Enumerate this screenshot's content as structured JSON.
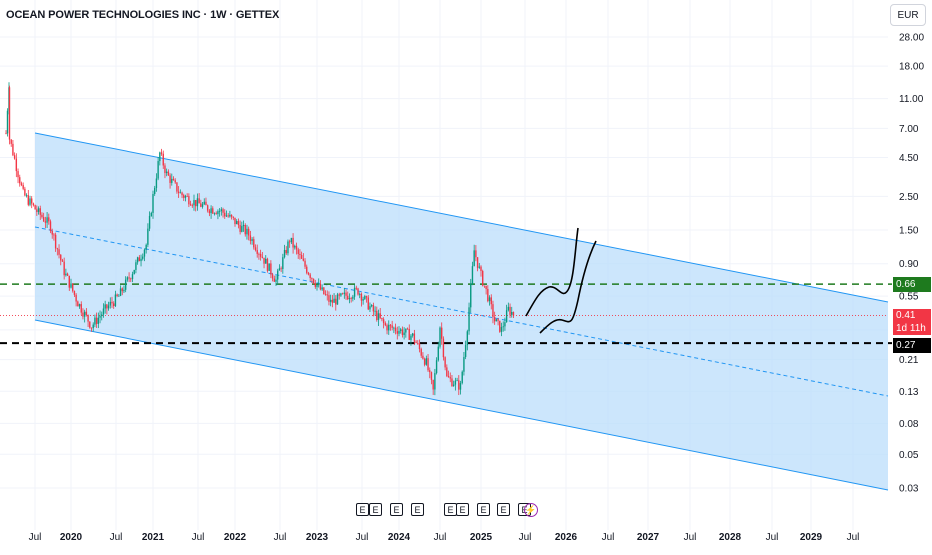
{
  "title": "OCEAN POWER TECHNOLOGIES INC · 1W · GETTEX",
  "currency": "EUR",
  "price_tags": {
    "level_high": "0.66",
    "last_price": "0.41",
    "countdown": "1d 11h",
    "level_low": "0.27"
  },
  "event_markers": [
    "E",
    "E",
    "E",
    "E",
    "E",
    "E",
    "E",
    "E",
    "E",
    "⚡"
  ],
  "colors": {
    "up": "#089981",
    "down": "#f23645",
    "channel_fill": "#bbdefb",
    "channel_line": "#2196f3",
    "level_high_line": "#1e7a1e",
    "level_low_line": "#000000",
    "bolt": "#9c27b0"
  },
  "chart_data": {
    "type": "line",
    "scale": "log",
    "y_ticks": [
      "28.00",
      "18.00",
      "11.00",
      "7.00",
      "4.50",
      "2.50",
      "1.50",
      "0.90",
      "0.55",
      "0.33",
      "0.21",
      "0.13",
      "0.08",
      "0.05",
      "0.03"
    ],
    "x_ticks": [
      "Jul",
      "2020",
      "Jul",
      "2021",
      "Jul",
      "2022",
      "Jul",
      "2023",
      "Jul",
      "2024",
      "Jul",
      "2025",
      "Jul",
      "2026",
      "Jul",
      "2027",
      "Jul",
      "2028",
      "Jul",
      "2029",
      "Jul"
    ],
    "ylim": [
      0.03,
      28
    ],
    "series": [
      {
        "values": [
          {
            "x": "2019-04",
            "y": 6.0
          },
          {
            "x": "2019-06",
            "y": 2.6
          },
          {
            "x": "2019-08",
            "y": 2.0
          },
          {
            "x": "2019-10",
            "y": 1.6
          },
          {
            "x": "2019-12",
            "y": 0.8
          },
          {
            "x": "2020-02",
            "y": 0.5
          },
          {
            "x": "2020-04",
            "y": 0.35
          },
          {
            "x": "2020-06",
            "y": 0.45
          },
          {
            "x": "2020-08",
            "y": 0.55
          },
          {
            "x": "2020-10",
            "y": 0.8
          },
          {
            "x": "2020-12",
            "y": 1.2
          },
          {
            "x": "2021-01",
            "y": 2.5
          },
          {
            "x": "2021-02",
            "y": 4.8
          },
          {
            "x": "2021-03",
            "y": 3.5
          },
          {
            "x": "2021-05",
            "y": 2.6
          },
          {
            "x": "2021-07",
            "y": 2.3
          },
          {
            "x": "2021-09",
            "y": 2.1
          },
          {
            "x": "2021-11",
            "y": 2.0
          },
          {
            "x": "2022-01",
            "y": 1.7
          },
          {
            "x": "2022-03",
            "y": 1.4
          },
          {
            "x": "2022-05",
            "y": 1.0
          },
          {
            "x": "2022-07",
            "y": 0.7
          },
          {
            "x": "2022-09",
            "y": 1.3
          },
          {
            "x": "2022-11",
            "y": 0.9
          },
          {
            "x": "2023-01",
            "y": 0.65
          },
          {
            "x": "2023-03",
            "y": 0.5
          },
          {
            "x": "2023-05",
            "y": 0.55
          },
          {
            "x": "2023-07",
            "y": 0.6
          },
          {
            "x": "2023-09",
            "y": 0.45
          },
          {
            "x": "2023-11",
            "y": 0.35
          },
          {
            "x": "2024-01",
            "y": 0.33
          },
          {
            "x": "2024-03",
            "y": 0.3
          },
          {
            "x": "2024-05",
            "y": 0.2
          },
          {
            "x": "2024-06",
            "y": 0.13
          },
          {
            "x": "2024-07",
            "y": 0.35
          },
          {
            "x": "2024-08",
            "y": 0.16
          },
          {
            "x": "2024-10",
            "y": 0.14
          },
          {
            "x": "2024-11",
            "y": 0.35
          },
          {
            "x": "2024-12",
            "y": 1.1
          },
          {
            "x": "2025-01",
            "y": 0.75
          },
          {
            "x": "2025-02",
            "y": 0.55
          },
          {
            "x": "2025-03",
            "y": 0.38
          },
          {
            "x": "2025-04",
            "y": 0.33
          },
          {
            "x": "2025-05",
            "y": 0.45
          },
          {
            "x": "2025-06",
            "y": 0.41
          }
        ]
      }
    ],
    "horizontal_levels": [
      0.66,
      0.27
    ],
    "last_price": 0.41,
    "annotations": [
      {
        "type": "descending_channel"
      },
      {
        "type": "dashed_midline"
      },
      {
        "type": "hand_drawn_projection",
        "count": 2
      }
    ],
    "grid": true,
    "legend": "none"
  }
}
